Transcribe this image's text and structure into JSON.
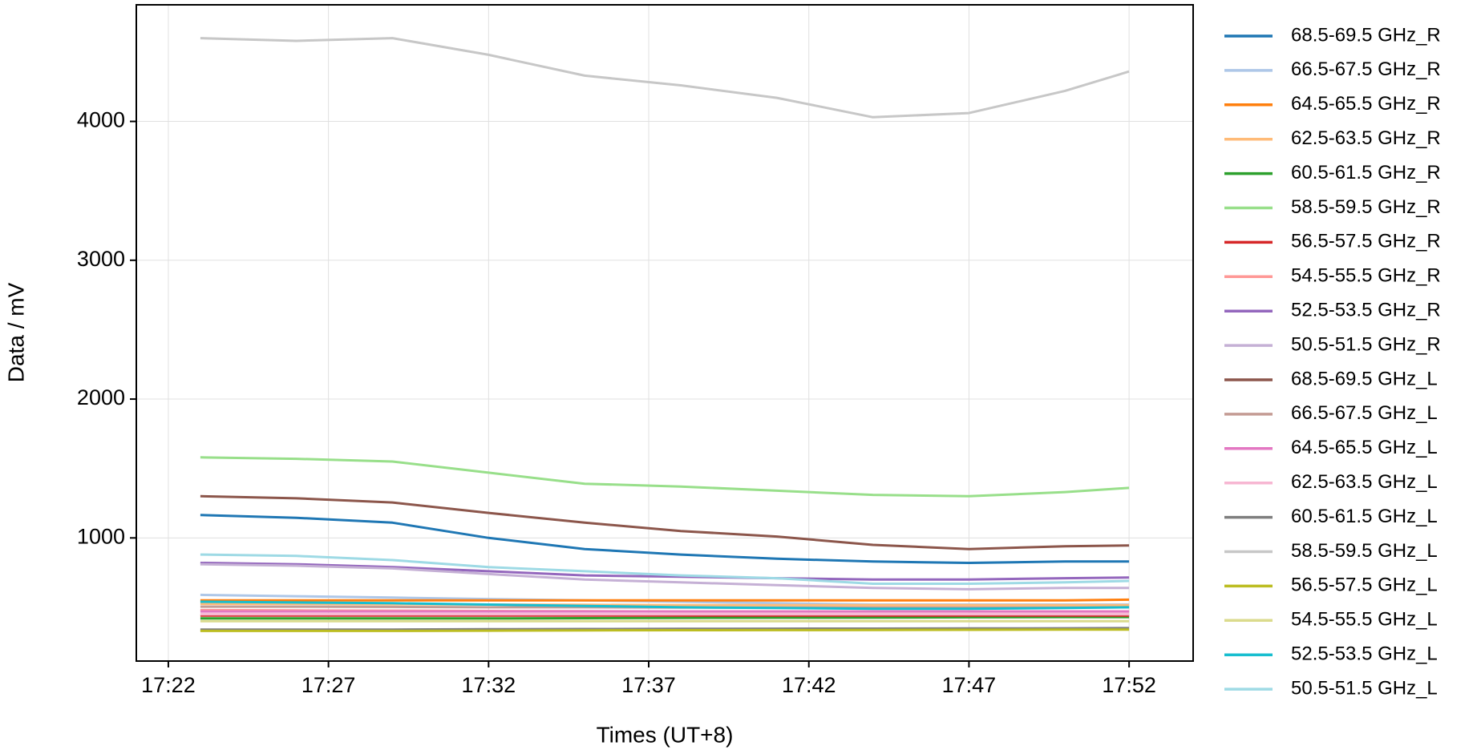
{
  "chart_data": {
    "type": "line",
    "x_label": "Times (UT+8)",
    "y_label": "Data / mV",
    "x": [
      "17:23",
      "17:26",
      "17:29",
      "17:32",
      "17:35",
      "17:38",
      "17:41",
      "17:44",
      "17:47",
      "17:50",
      "17:52"
    ],
    "xlim": [
      "17:21",
      "17:54"
    ],
    "xticks": [
      "17:22",
      "17:27",
      "17:32",
      "17:37",
      "17:42",
      "17:47",
      "17:52"
    ],
    "ylim": [
      113,
      4840
    ],
    "yticks": [
      1000,
      2000,
      3000,
      4000
    ],
    "grid": true,
    "legend": "outside-right",
    "series": [
      {
        "name": "68.5-69.5 GHz_R",
        "color": "#1f77b4",
        "values": [
          1165,
          1145,
          1110,
          1000,
          920,
          880,
          850,
          830,
          820,
          830,
          830
        ]
      },
      {
        "name": "66.5-67.5 GHz_R",
        "color": "#aec7e8",
        "values": [
          590,
          580,
          570,
          560,
          550,
          540,
          530,
          520,
          520,
          520,
          520
        ]
      },
      {
        "name": "64.5-65.5 GHz_R",
        "color": "#ff7f0e",
        "values": [
          550,
          550,
          550,
          550,
          550,
          550,
          550,
          550,
          550,
          550,
          555
        ]
      },
      {
        "name": "62.5-63.5 GHz_R",
        "color": "#ffbb78",
        "values": [
          525,
          525,
          522,
          520,
          518,
          515,
          515,
          515,
          515,
          515,
          515
        ]
      },
      {
        "name": "60.5-61.5 GHz_R",
        "color": "#2ca02c",
        "values": [
          420,
          420,
          420,
          420,
          422,
          424,
          425,
          426,
          428,
          430,
          430
        ]
      },
      {
        "name": "58.5-59.5 GHz_R",
        "color": "#98df8a",
        "values": [
          1580,
          1570,
          1550,
          1470,
          1390,
          1370,
          1340,
          1310,
          1300,
          1330,
          1360
        ]
      },
      {
        "name": "56.5-57.5 GHz_R",
        "color": "#d62728",
        "values": [
          440,
          440,
          440,
          440,
          440,
          440,
          440,
          440,
          440,
          440,
          440
        ]
      },
      {
        "name": "54.5-55.5 GHz_R",
        "color": "#ff9896",
        "values": [
          480,
          478,
          476,
          474,
          472,
          470,
          470,
          470,
          470,
          470,
          470
        ]
      },
      {
        "name": "52.5-53.5 GHz_R",
        "color": "#9467bd",
        "values": [
          820,
          810,
          790,
          760,
          730,
          720,
          710,
          700,
          700,
          710,
          715
        ]
      },
      {
        "name": "50.5-51.5 GHz_R",
        "color": "#c5b0d5",
        "values": [
          810,
          800,
          780,
          740,
          700,
          680,
          660,
          640,
          630,
          640,
          640
        ]
      },
      {
        "name": "68.5-69.5 GHz_L",
        "color": "#8c564b",
        "values": [
          1300,
          1285,
          1255,
          1180,
          1110,
          1050,
          1010,
          950,
          920,
          940,
          945
        ]
      },
      {
        "name": "66.5-67.5 GHz_L",
        "color": "#c49c94",
        "values": [
          505,
          505,
          503,
          500,
          500,
          498,
          498,
          498,
          498,
          498,
          500
        ]
      },
      {
        "name": "64.5-65.5 GHz_L",
        "color": "#e377c2",
        "values": [
          470,
          470,
          470,
          470,
          470,
          470,
          470,
          470,
          470,
          470,
          470
        ]
      },
      {
        "name": "62.5-63.5 GHz_L",
        "color": "#f7b6d2",
        "values": [
          450,
          450,
          450,
          450,
          450,
          450,
          450,
          450,
          450,
          450,
          450
        ]
      },
      {
        "name": "60.5-61.5 GHz_L",
        "color": "#7f7f7f",
        "values": [
          340,
          340,
          340,
          342,
          344,
          345,
          346,
          347,
          348,
          349,
          350
        ]
      },
      {
        "name": "58.5-59.5 GHz_L",
        "color": "#c7c7c7",
        "values": [
          4600,
          4580,
          4600,
          4480,
          4330,
          4260,
          4170,
          4030,
          4060,
          4220,
          4360
        ]
      },
      {
        "name": "56.5-57.5 GHz_L",
        "color": "#bcbd22",
        "values": [
          330,
          330,
          330,
          332,
          334,
          335,
          336,
          337,
          338,
          339,
          340
        ]
      },
      {
        "name": "54.5-55.5 GHz_L",
        "color": "#dbdb8d",
        "values": [
          400,
          400,
          400,
          400,
          400,
          400,
          400,
          400,
          400,
          400,
          400
        ]
      },
      {
        "name": "52.5-53.5 GHz_L",
        "color": "#17becf",
        "values": [
          540,
          535,
          530,
          520,
          510,
          500,
          495,
          490,
          490,
          495,
          500
        ]
      },
      {
        "name": "50.5-51.5 GHz_L",
        "color": "#9edae5",
        "values": [
          880,
          870,
          840,
          790,
          760,
          730,
          710,
          670,
          670,
          680,
          690
        ]
      }
    ]
  }
}
